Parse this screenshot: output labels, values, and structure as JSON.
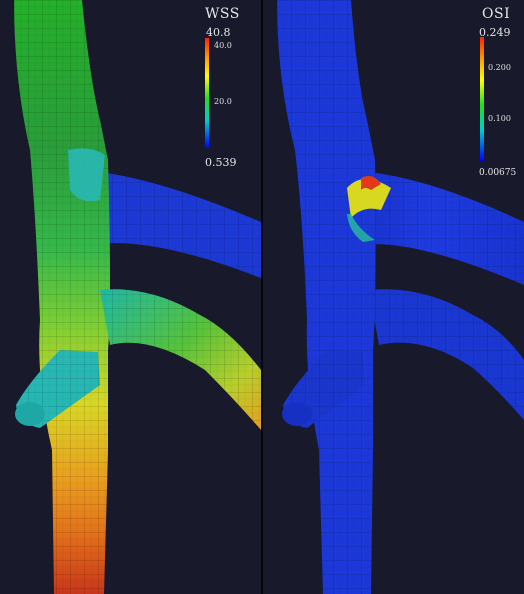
{
  "panels": {
    "wss": {
      "title": "WSS",
      "max_value": "40.8",
      "min_value": "0.539",
      "ticks": [
        "40.0",
        "20.0"
      ]
    },
    "osi": {
      "title": "OSI",
      "max_value": "0.249",
      "min_value": "0.00675",
      "ticks": [
        "0.200",
        "0.100"
      ]
    }
  },
  "colors": {
    "background": "#18192b",
    "colormap": [
      "#0000ff",
      "#00cccc",
      "#22dd22",
      "#ffff00",
      "#ffaa00",
      "#ff2200"
    ]
  }
}
